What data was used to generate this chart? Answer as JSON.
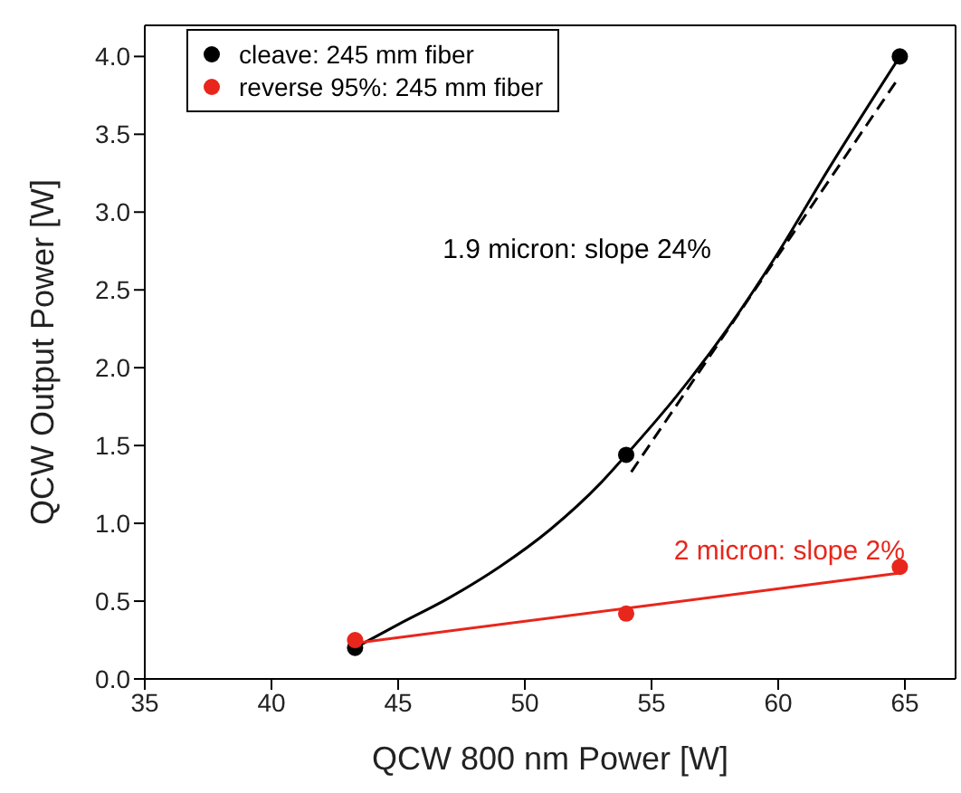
{
  "chart_data": {
    "type": "scatter",
    "xlabel": "QCW 800 nm Power [W]",
    "ylabel": "QCW Output Power [W]",
    "xlim": [
      35,
      67
    ],
    "xticks": [
      35,
      40,
      45,
      50,
      55,
      60,
      65
    ],
    "ylim": [
      0,
      4.2
    ],
    "yticks": [
      {
        "value": 0,
        "label": "0.0"
      },
      0.5,
      {
        "value": 1,
        "label": "1.0"
      },
      1.5,
      {
        "value": 2,
        "label": "2.0"
      },
      2.5,
      {
        "value": 3,
        "label": "3.0"
      },
      3.5,
      {
        "value": 4,
        "label": "4.0"
      }
    ],
    "grid": false,
    "legend": "top left",
    "marker": "circle",
    "series": [
      {
        "name": "cleave: 245 mm fiber",
        "color": "#000000",
        "x": [
          43.3,
          54,
          64.8
        ],
        "values": [
          0.2,
          1.44,
          4.0
        ]
      },
      {
        "name": "reverse 95%: 245 mm fiber",
        "color": "#e8261c",
        "x": [
          43.3,
          54,
          64.8
        ],
        "values": [
          0.25,
          0.42,
          0.72
        ]
      },
      {
        "type": "line",
        "color": "#000000",
        "line_style": "solid",
        "marker": "none",
        "x": [
          43.3,
          45,
          47,
          49,
          51,
          53,
          54,
          56,
          58,
          60,
          62,
          64.8
        ],
        "values": [
          0.2,
          0.35,
          0.52,
          0.72,
          0.96,
          1.26,
          1.44,
          1.82,
          2.25,
          2.74,
          3.28,
          4.0
        ]
      },
      {
        "name": "1.9 micron: slope 24%",
        "type": "line",
        "color": "#000000",
        "line_style": "dashed",
        "marker": "none",
        "x": [
          54.2,
          64.7
        ],
        "values": [
          1.33,
          3.85
        ]
      },
      {
        "name": "2 micron: slope 2%",
        "type": "line",
        "color": "#e8261c",
        "line_style": "solid",
        "marker": "none",
        "x": [
          43.3,
          64.8
        ],
        "values": [
          0.23,
          0.68
        ]
      }
    ]
  }
}
